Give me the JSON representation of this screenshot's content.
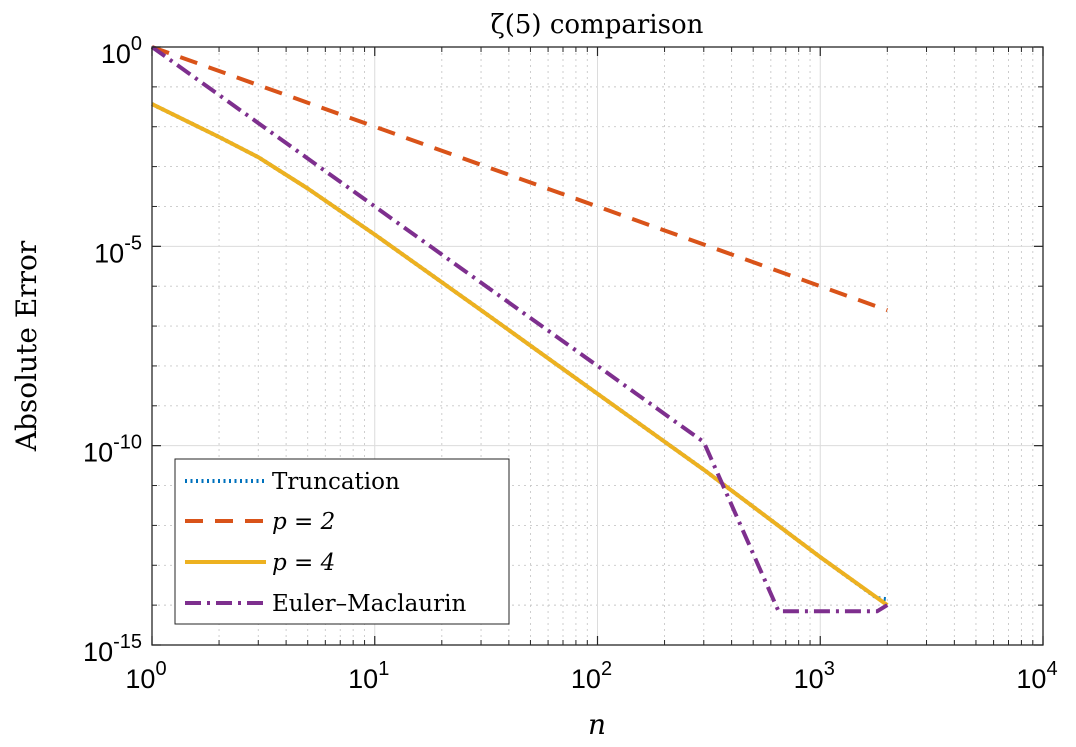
{
  "chart_data": {
    "type": "line",
    "title": "ζ(5) comparison",
    "xlabel": "n",
    "ylabel": "Absolute Error",
    "xscale": "log",
    "yscale": "log",
    "xlim": [
      1,
      10000
    ],
    "ylim": [
      1e-15,
      1
    ],
    "grid": true,
    "minor_grid": true,
    "legend_position": "bottom-left",
    "x_ticks": [
      {
        "base": "10",
        "exp": "0"
      },
      {
        "base": "10",
        "exp": "1"
      },
      {
        "base": "10",
        "exp": "2"
      },
      {
        "base": "10",
        "exp": "3"
      },
      {
        "base": "10",
        "exp": "4"
      }
    ],
    "y_ticks": [
      {
        "base": "10",
        "exp": "0",
        "value": 1
      },
      {
        "base": "10",
        "exp": "-5",
        "value": 1e-05
      },
      {
        "base": "10",
        "exp": "-10",
        "value": 1e-10
      },
      {
        "base": "10",
        "exp": "-15",
        "value": 1e-15
      }
    ],
    "series": [
      {
        "name": "Truncation",
        "color": "#0072BD",
        "dash": "dotted",
        "x": [
          1,
          2,
          3,
          5,
          10,
          30,
          100,
          300,
          1000,
          1800,
          2000
        ],
        "y": [
          0.0369,
          0.00553,
          0.00172,
          0.000283,
          1.97e-05,
          2.52e-07,
          2e-09,
          2.5e-11,
          1.6e-13,
          1.5e-14,
          1.4e-14
        ]
      },
      {
        "name": "p = 2",
        "color": "#D95319",
        "dash": "dashed",
        "x": [
          1,
          2,
          3,
          5,
          10,
          30,
          100,
          300,
          1000,
          2000
        ],
        "y": [
          1,
          0.25,
          0.111,
          0.04,
          0.01,
          0.00111,
          0.0001,
          1.11e-05,
          1e-06,
          2.5e-07
        ]
      },
      {
        "name": "p = 4",
        "color": "#EDB120",
        "dash": "solid",
        "x": [
          1,
          2,
          3,
          5,
          10,
          30,
          100,
          300,
          1000,
          2000
        ],
        "y": [
          0.0369,
          0.00553,
          0.00172,
          0.000283,
          1.97e-05,
          2.52e-07,
          2e-09,
          2.5e-11,
          1.6e-13,
          1e-14
        ]
      },
      {
        "name": "Euler–Maclaurin",
        "color": "#7E2F8E",
        "dash": "dashdot",
        "x": [
          1,
          2,
          3,
          5,
          10,
          30,
          100,
          300,
          650,
          1800,
          2000
        ],
        "y": [
          1,
          0.0625,
          0.0123,
          0.0016,
          0.0001,
          1.23e-06,
          1e-08,
          1.23e-10,
          7e-15,
          7e-15,
          1e-14
        ]
      }
    ]
  }
}
